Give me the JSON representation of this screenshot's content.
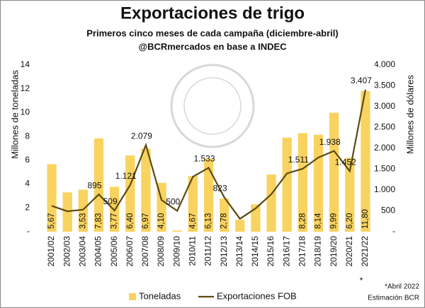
{
  "chart_data": {
    "type": "bar-line",
    "title": "Exportaciones de trigo",
    "subtitle": [
      "Primeros cinco meses de cada campaña (diciembre-abril)",
      "@BCRmercados en base a INDEC"
    ],
    "y_label": "Millones de toneladas",
    "y2_label": "Millones de dólares",
    "categories": [
      "2001/02",
      "2002/03",
      "2003/04",
      "2004/05",
      "2005/06",
      "2006/07",
      "2007/08",
      "2008/09",
      "2009/10",
      "2010/11",
      "2011/12",
      "2012/13",
      "2013/14",
      "2014/15",
      "2015/16",
      "2016/17",
      "2017/18",
      "2018/19",
      "2019/20",
      "2020/21",
      "2021/22"
    ],
    "series": [
      {
        "name": "Toneladas",
        "kind": "bar",
        "color": "#f9d35f",
        "values": [
          5.67,
          3.3,
          3.53,
          7.83,
          3.77,
          6.4,
          6.97,
          4.1,
          0.1,
          4.67,
          6.13,
          2.78,
          1.0,
          2.3,
          4.8,
          7.9,
          8.28,
          8.14,
          9.99,
          6.2,
          11.8
        ],
        "value_labels": [
          "5,67",
          null,
          "3,53",
          "7,83",
          "3,77",
          "6,40",
          "6,97",
          "4,10",
          null,
          "4,67",
          "6,13",
          "2,78",
          null,
          null,
          null,
          null,
          "8,28",
          "8,14",
          "9,99",
          "6,20",
          "11,80"
        ]
      },
      {
        "name": "Exportaciones FOB",
        "kind": "line",
        "axis": "y2",
        "color": "#5c4a12",
        "values": [
          620,
          490,
          530,
          895,
          509,
          1121,
          2079,
          760,
          500,
          1320,
          1533,
          823,
          310,
          560,
          900,
          1400,
          1511,
          1780,
          1938,
          1452,
          3407
        ],
        "value_labels": [
          null,
          null,
          null,
          "895",
          "509",
          "1.121",
          "2.079",
          null,
          "500",
          null,
          "1.533",
          "823",
          null,
          null,
          null,
          null,
          "1.511",
          null,
          "1.938",
          "1.452",
          "3.407"
        ]
      }
    ],
    "ylim": [
      0,
      14
    ],
    "yticks": [
      {
        "value": 0,
        "label": "-"
      },
      2,
      4,
      6,
      8,
      10,
      12,
      14
    ],
    "y2lim": [
      0,
      4000
    ],
    "y2ticks": [
      {
        "value": 0,
        "label": "-"
      },
      500,
      {
        "value": 1000,
        "label": "1.000"
      },
      {
        "value": 1500,
        "label": "1.500"
      },
      {
        "value": 2000,
        "label": "2.000"
      },
      {
        "value": 2500,
        "label": "2.500"
      },
      {
        "value": 3000,
        "label": "3.000"
      },
      {
        "value": 3500,
        "label": "3.500"
      },
      {
        "value": 4000,
        "label": "4.000"
      }
    ],
    "annotations": [
      "*",
      "*Abril 2022",
      "Estimación BCR"
    ]
  }
}
